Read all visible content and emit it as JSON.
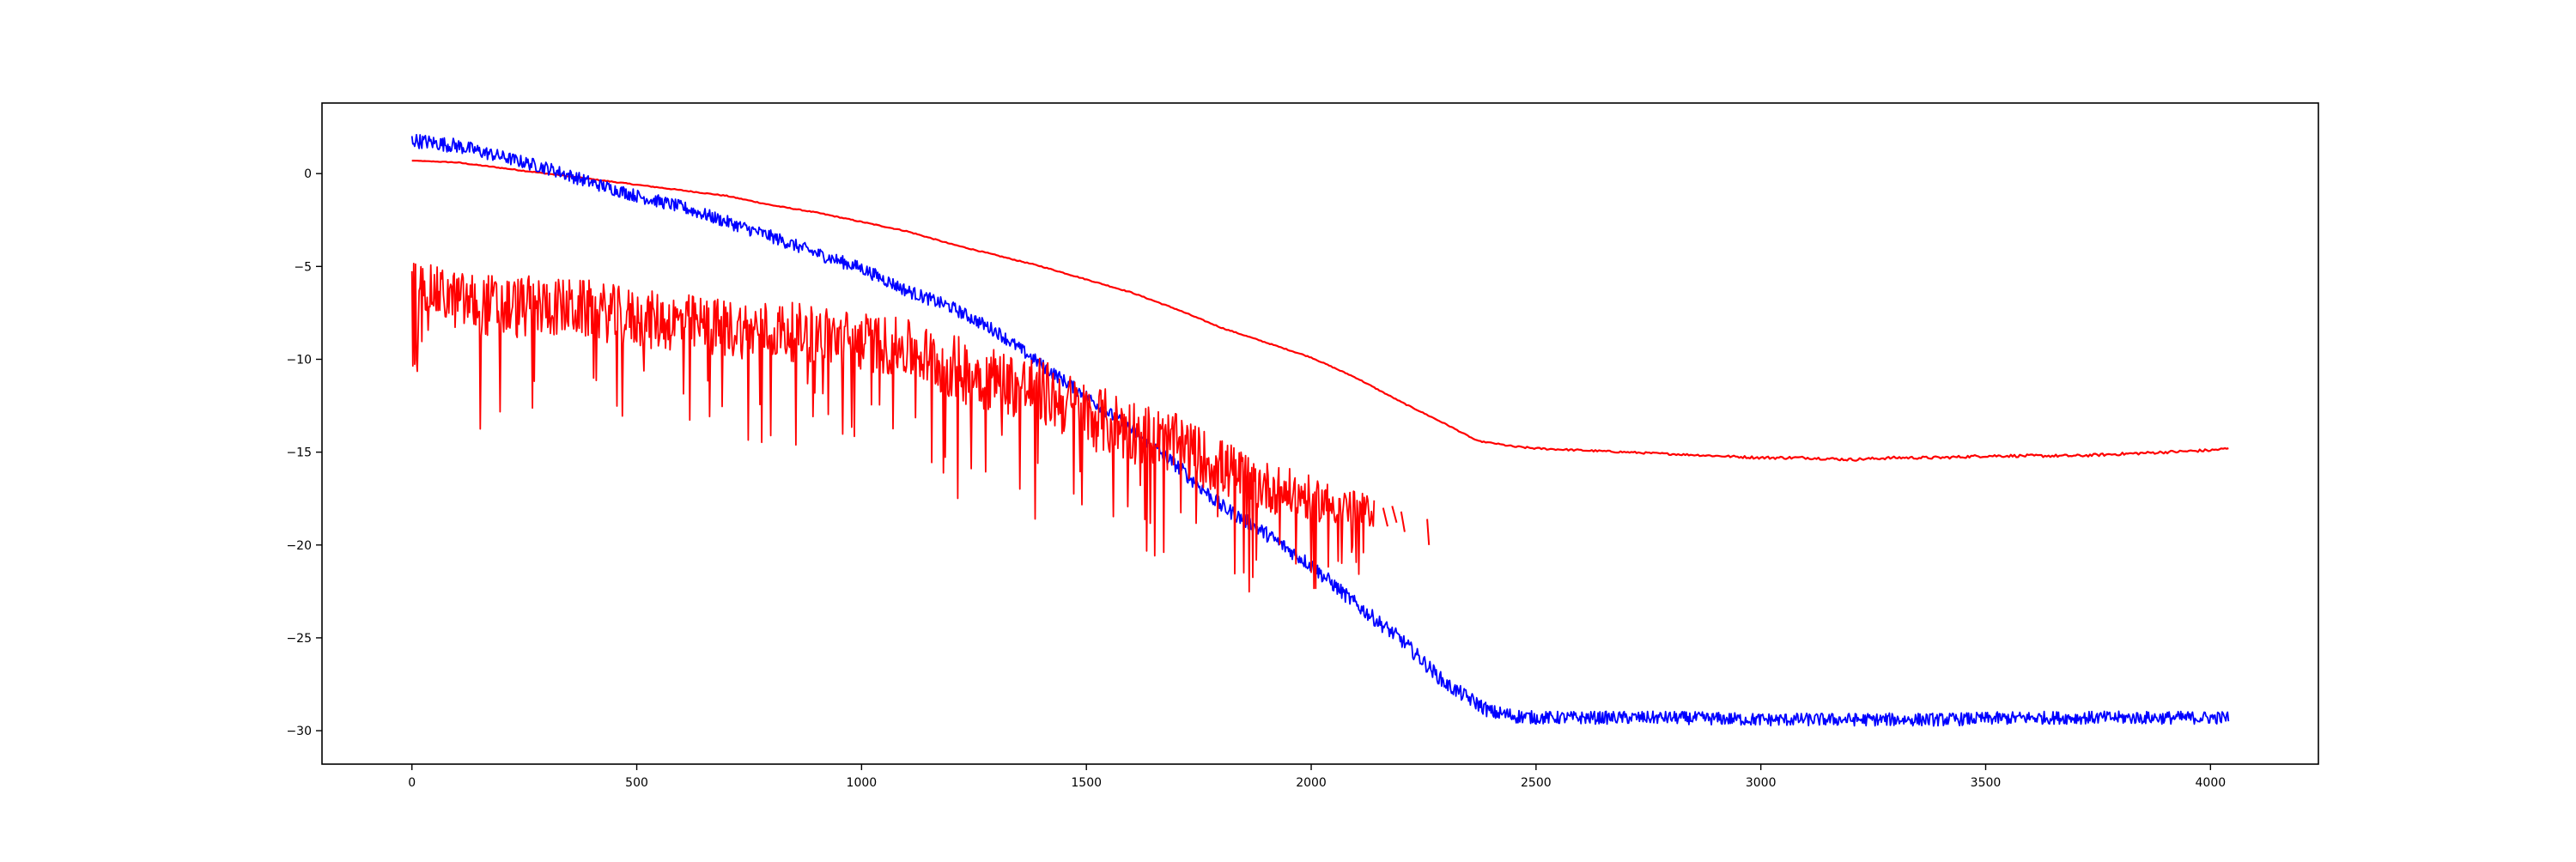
{
  "chart_data": {
    "type": "line",
    "title": "",
    "xlabel": "",
    "ylabel": "",
    "xlim": [
      -200,
      4240
    ],
    "ylim": [
      -31.8,
      3.8
    ],
    "grid": false,
    "x_ticks": [
      0,
      500,
      1000,
      1500,
      2000,
      2500,
      3000,
      3500,
      4000
    ],
    "y_ticks": [
      0,
      -5,
      -10,
      -15,
      -20,
      -25,
      -30
    ],
    "x_tick_labels": [
      "0",
      "500",
      "1000",
      "1500",
      "2000",
      "2500",
      "3000",
      "3500",
      "4000"
    ],
    "y_tick_labels": [
      "0",
      "−5",
      "−10",
      "−15",
      "−20",
      "−25",
      "−30"
    ],
    "series": [
      {
        "color": "#ff0000",
        "style": "smooth",
        "x": [
          0,
          100,
          200,
          300,
          400,
          500,
          600,
          700,
          800,
          900,
          1000,
          1100,
          1200,
          1300,
          1400,
          1500,
          1600,
          1700,
          1800,
          1900,
          2000,
          2100,
          2200,
          2300,
          2370,
          2400,
          2450,
          2500,
          2600,
          2700,
          2800,
          2900,
          3000,
          3100,
          3200,
          3300,
          3400,
          3500,
          3600,
          3700,
          3800,
          3900,
          4000,
          4040
        ],
        "y": [
          0.7,
          0.6,
          0.3,
          0.0,
          -0.3,
          -0.6,
          -0.9,
          -1.2,
          -1.7,
          -2.1,
          -2.6,
          -3.1,
          -3.8,
          -4.4,
          -5.0,
          -5.7,
          -6.4,
          -7.3,
          -8.3,
          -9.1,
          -9.9,
          -11.0,
          -12.3,
          -13.5,
          -14.4,
          -14.5,
          -14.7,
          -14.8,
          -14.9,
          -15.0,
          -15.1,
          -15.2,
          -15.3,
          -15.3,
          -15.4,
          -15.3,
          -15.3,
          -15.2,
          -15.2,
          -15.2,
          -15.1,
          -15.0,
          -14.9,
          -14.8
        ],
        "noise": [
          0,
          0.05,
          0.05,
          0.05,
          0.05,
          0.05,
          0.05,
          0.05,
          0.05,
          0.05,
          0.05,
          0.05,
          0.05,
          0.05,
          0.05,
          0.05,
          0.05,
          0.05,
          0.05,
          0.05,
          0.05,
          0.05,
          0.05,
          0.05,
          0.05,
          0.05,
          0.1,
          0.1,
          0.1,
          0.1,
          0.1,
          0.1,
          0.15,
          0.15,
          0.15,
          0.15,
          0.15,
          0.15,
          0.15,
          0.15,
          0.15,
          0.15,
          0.15,
          0.1
        ]
      },
      {
        "color": "#0000ff",
        "style": "noisy",
        "x": [
          0,
          100,
          200,
          300,
          400,
          500,
          600,
          700,
          800,
          900,
          1000,
          1100,
          1200,
          1300,
          1400,
          1500,
          1600,
          1700,
          1800,
          1900,
          2000,
          2100,
          2200,
          2300,
          2400,
          2450,
          2500,
          2600,
          2800,
          3000,
          3200,
          3400,
          3600,
          3800,
          4000,
          4040
        ],
        "y": [
          1.8,
          1.5,
          0.9,
          0.3,
          -0.5,
          -1.2,
          -1.8,
          -2.6,
          -3.4,
          -4.3,
          -5.1,
          -6.3,
          -7.2,
          -8.5,
          -10.3,
          -12.0,
          -13.8,
          -15.7,
          -17.9,
          -19.4,
          -21.1,
          -23.2,
          -25.1,
          -27.5,
          -29.0,
          -29.2,
          -29.3,
          -29.3,
          -29.3,
          -29.4,
          -29.4,
          -29.4,
          -29.3,
          -29.3,
          -29.3,
          -29.3
        ],
        "noise": [
          0.4,
          0.4,
          0.35,
          0.35,
          0.35,
          0.35,
          0.35,
          0.35,
          0.35,
          0.35,
          0.35,
          0.35,
          0.35,
          0.35,
          0.35,
          0.35,
          0.35,
          0.4,
          0.4,
          0.4,
          0.4,
          0.4,
          0.4,
          0.4,
          0.4,
          0.4,
          0.35,
          0.35,
          0.35,
          0.35,
          0.35,
          0.35,
          0.35,
          0.35,
          0.35,
          0.35
        ]
      },
      {
        "color": "#ff0000",
        "style": "spiky",
        "x": [
          0,
          100,
          200,
          300,
          400,
          500,
          600,
          700,
          800,
          900,
          1000,
          1100,
          1200,
          1300,
          1400,
          1500,
          1600,
          1700,
          1800,
          1900,
          2000,
          2100,
          2140
        ],
        "y": [
          -6.0,
          -7.0,
          -7.4,
          -7.3,
          -7.5,
          -8.0,
          -8.2,
          -8.5,
          -8.6,
          -8.8,
          -9.2,
          -9.6,
          -10.6,
          -11.3,
          -11.9,
          -13.2,
          -14.0,
          -14.7,
          -16.0,
          -17.0,
          -17.6,
          -18.2,
          -18.3
        ],
        "noise": [
          1.2,
          1.6,
          1.8,
          1.6,
          1.6,
          1.6,
          1.6,
          1.6,
          1.6,
          1.6,
          1.6,
          1.6,
          1.8,
          1.8,
          1.8,
          1.8,
          1.8,
          1.6,
          1.6,
          1.4,
          1.2,
          1.0,
          0.8
        ]
      },
      {
        "color": "#ff0000",
        "style": "segments",
        "segments": [
          [
            [
              2160,
              -18.0
            ],
            [
              2170,
              -19.0
            ]
          ],
          [
            [
              2180,
              -17.9
            ],
            [
              2190,
              -18.8
            ]
          ],
          [
            [
              2200,
              -18.2
            ],
            [
              2208,
              -19.3
            ]
          ],
          [
            [
              2258,
              -18.6
            ],
            [
              2262,
              -20.0
            ]
          ]
        ]
      }
    ]
  }
}
